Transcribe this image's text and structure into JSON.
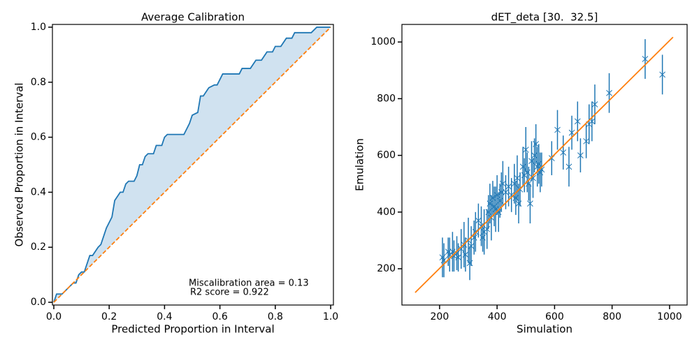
{
  "chart_data": [
    {
      "type": "line",
      "title": "Average Calibration",
      "xlabel": "Predicted Proportion in Interval",
      "ylabel": "Observed Proportion in Interval",
      "xlim": [
        -0.005,
        1.01
      ],
      "ylim": [
        -0.01,
        1.01
      ],
      "xticks": [
        {
          "value": 0,
          "label": "0.0"
        },
        0.2,
        0.4,
        0.6,
        0.8,
        {
          "value": 1,
          "label": "1.0"
        }
      ],
      "yticks": [
        {
          "value": 0,
          "label": "0.0"
        },
        0.2,
        0.4,
        0.6,
        0.8,
        {
          "value": 1,
          "label": "1.0"
        }
      ],
      "series": [
        {
          "color": "#1f77b4",
          "fill_color": "#d0e2f0",
          "x": [
            0,
            0.01,
            0.03,
            0.06,
            0.07,
            0.08,
            0.09,
            0.1,
            0.11,
            0.13,
            0.14,
            0.16,
            0.17,
            0.19,
            0.2,
            0.21,
            0.22,
            0.24,
            0.25,
            0.26,
            0.27,
            0.29,
            0.3,
            0.31,
            0.32,
            0.33,
            0.34,
            0.36,
            0.37,
            0.39,
            0.4,
            0.41,
            0.47,
            0.49,
            0.5,
            0.52,
            0.53,
            0.54,
            0.56,
            0.58,
            0.59,
            0.6,
            0.61,
            0.67,
            0.68,
            0.71,
            0.73,
            0.75,
            0.77,
            0.79,
            0.8,
            0.82,
            0.84,
            0.86,
            0.87,
            0.93,
            0.95,
            1.0
          ],
          "values": [
            0,
            0.03,
            0.03,
            0.06,
            0.07,
            0.07,
            0.1,
            0.11,
            0.11,
            0.17,
            0.17,
            0.2,
            0.21,
            0.27,
            0.29,
            0.31,
            0.37,
            0.4,
            0.4,
            0.43,
            0.44,
            0.44,
            0.46,
            0.5,
            0.5,
            0.53,
            0.54,
            0.54,
            0.57,
            0.57,
            0.6,
            0.61,
            0.61,
            0.65,
            0.68,
            0.69,
            0.75,
            0.75,
            0.78,
            0.79,
            0.79,
            0.81,
            0.83,
            0.83,
            0.85,
            0.85,
            0.88,
            0.88,
            0.91,
            0.91,
            0.93,
            0.93,
            0.96,
            0.96,
            0.98,
            0.98,
            1.0,
            1.0
          ]
        },
        {
          "color": "#ff7f0e",
          "linestyle": "dashed",
          "x": [
            0,
            1
          ],
          "values": [
            0,
            1
          ]
        }
      ],
      "annotations": [
        "Miscalibration area = 0.13",
        "R2 score = 0.922"
      ]
    },
    {
      "type": "scatter",
      "title": "dET_deta [30.  32.5]",
      "xlabel": "Simulation",
      "ylabel": "Emulation",
      "xlim": [
        69,
        1061
      ],
      "ylim": [
        72,
        1062
      ],
      "xticks": [
        200,
        400,
        600,
        800,
        1000
      ],
      "yticks": [
        200,
        400,
        600,
        800,
        1000
      ],
      "series": [
        {
          "color": "#1f77b4",
          "marker": "x",
          "x": [
            210,
            215,
            230,
            235,
            245,
            250,
            260,
            265,
            275,
            285,
            290,
            300,
            305,
            310,
            320,
            325,
            335,
            345,
            350,
            355,
            365,
            370,
            375,
            380,
            385,
            390,
            395,
            400,
            405,
            410,
            415,
            420,
            430,
            440,
            450,
            460,
            465,
            470,
            475,
            480,
            490,
            495,
            500,
            505,
            510,
            515,
            520,
            525,
            530,
            535,
            540,
            545,
            550,
            555,
            590,
            610,
            630,
            650,
            660,
            680,
            690,
            710,
            720,
            730,
            740,
            790,
            915,
            975
          ],
          "values": [
            240,
            230,
            260,
            250,
            260,
            245,
            255,
            240,
            270,
            285,
            250,
            300,
            220,
            280,
            310,
            330,
            370,
            350,
            310,
            330,
            340,
            400,
            430,
            380,
            450,
            420,
            410,
            460,
            400,
            440,
            470,
            500,
            470,
            490,
            460,
            500,
            450,
            520,
            430,
            480,
            560,
            530,
            620,
            540,
            500,
            430,
            580,
            520,
            600,
            640,
            560,
            570,
            540,
            550,
            590,
            690,
            610,
            560,
            680,
            720,
            600,
            650,
            710,
            720,
            780,
            820,
            940,
            885
          ],
          "errors": [
            70,
            60,
            50,
            60,
            70,
            55,
            60,
            50,
            70,
            80,
            60,
            80,
            60,
            70,
            60,
            70,
            60,
            70,
            50,
            80,
            70,
            60,
            70,
            80,
            60,
            70,
            80,
            70,
            70,
            60,
            70,
            80,
            60,
            70,
            60,
            70,
            60,
            80,
            70,
            60,
            70,
            60,
            80,
            70,
            60,
            70,
            70,
            70,
            60,
            70,
            70,
            70,
            70,
            60,
            60,
            70,
            60,
            70,
            60,
            70,
            60,
            60,
            70,
            70,
            70,
            70,
            70,
            70
          ]
        },
        {
          "type": "line",
          "color": "#ff7f0e",
          "x": [
            115,
            1012
          ],
          "values": [
            116,
            1017
          ]
        }
      ]
    }
  ]
}
